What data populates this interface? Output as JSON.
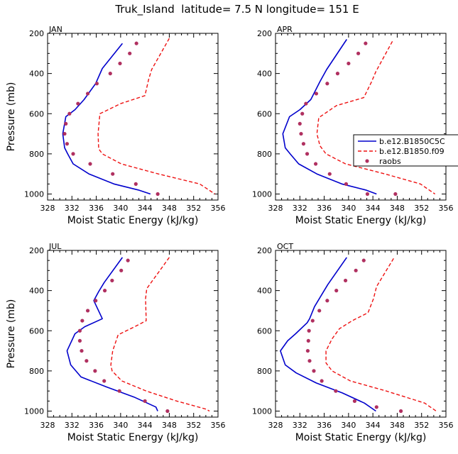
{
  "page": {
    "title": "Truk_Island  latitude= 7.5 N longitude= 151 E"
  },
  "legend": {
    "entries": [
      {
        "name": "b.e12.B1850C5C",
        "color": "#0000cc",
        "style": "solid"
      },
      {
        "name": "b.e12.B1850.f09",
        "color": "#ee1111",
        "style": "dashed"
      },
      {
        "name": "raobs",
        "color": "#b03060",
        "style": "dots"
      }
    ]
  },
  "chart_data": [
    {
      "type": "line",
      "title": "JAN",
      "xlabel": "Moist Static Energy (kJ/kg)",
      "ylabel": "Pressure (mb)",
      "xlim": [
        328,
        356
      ],
      "ylim": [
        200,
        1030
      ],
      "y_inverted": true,
      "xticks": [
        328,
        332,
        336,
        340,
        344,
        348,
        352,
        356
      ],
      "yticks": [
        200,
        400,
        600,
        800,
        1000
      ],
      "series": [
        {
          "name": "b.e12.B1850C5C",
          "color": "#0000cc",
          "style": "solid",
          "x": [
            340.3,
            337.0,
            335.9,
            334.0,
            332.5,
            331.0,
            330.5,
            330.8,
            331.3,
            332.2,
            334.8,
            338.9,
            342.9,
            344.9
          ],
          "y": [
            250,
            375,
            450,
            530,
            580,
            615,
            700,
            770,
            800,
            850,
            900,
            950,
            980,
            1000
          ]
        },
        {
          "name": "b.e12.B1850.f09",
          "color": "#ee1111",
          "style": "dashed",
          "x": [
            348.0,
            345.1,
            344.6,
            344.0,
            340.0,
            336.6,
            336.3,
            336.4,
            337.0,
            340.1,
            346.2,
            353.0,
            355.5
          ],
          "y": [
            225,
            380,
            430,
            510,
            550,
            600,
            700,
            775,
            800,
            850,
            900,
            950,
            1000
          ]
        },
        {
          "name": "raobs",
          "color": "#b03060",
          "style": "dots",
          "x": [
            342.6,
            341.5,
            339.9,
            338.3,
            336.1,
            334.6,
            333.0,
            331.6,
            331.0,
            330.8,
            331.2,
            332.2,
            335.0,
            338.7,
            342.5,
            346.1
          ],
          "y": [
            250,
            300,
            350,
            400,
            450,
            500,
            550,
            600,
            650,
            700,
            750,
            800,
            850,
            900,
            950,
            1000
          ]
        }
      ]
    },
    {
      "type": "line",
      "title": "APR",
      "xlabel": "Moist Static Energy (kJ/kg)",
      "ylabel": "",
      "xlim": [
        328,
        356
      ],
      "ylim": [
        200,
        1030
      ],
      "y_inverted": true,
      "xticks": [
        328,
        332,
        336,
        340,
        344,
        348,
        352,
        356
      ],
      "yticks": [
        200,
        400,
        600,
        800,
        1000
      ],
      "series": [
        {
          "name": "b.e12.B1850C5C",
          "color": "#0000cc",
          "style": "solid",
          "x": [
            339.7,
            336.4,
            335.3,
            333.8,
            332.0,
            330.3,
            329.2,
            329.6,
            330.4,
            331.8,
            334.8,
            338.9,
            342.8,
            344.6
          ],
          "y": [
            230,
            380,
            440,
            530,
            580,
            615,
            700,
            770,
            800,
            850,
            900,
            950,
            980,
            1000
          ]
        },
        {
          "name": "b.e12.B1850.f09",
          "color": "#ee1111",
          "style": "dashed",
          "x": [
            347.2,
            344.5,
            343.8,
            342.5,
            338.0,
            335.1,
            334.8,
            335.3,
            336.3,
            339.5,
            346.0,
            351.8,
            354.2
          ],
          "y": [
            240,
            390,
            440,
            520,
            560,
            620,
            700,
            760,
            800,
            850,
            900,
            950,
            1000
          ]
        },
        {
          "name": "raobs",
          "color": "#b03060",
          "style": "dots",
          "x": [
            342.8,
            341.6,
            340.0,
            338.2,
            336.5,
            334.7,
            333.0,
            332.4,
            332.0,
            332.2,
            332.6,
            333.2,
            334.6,
            336.9,
            339.6,
            343.1,
            347.7
          ],
          "y": [
            250,
            300,
            350,
            400,
            450,
            500,
            550,
            600,
            650,
            700,
            750,
            800,
            850,
            900,
            950,
            1000,
            1000
          ]
        }
      ]
    },
    {
      "type": "line",
      "title": "JUL",
      "xlabel": "Moist Static Energy (kJ/kg)",
      "ylabel": "Pressure (mb)",
      "xlim": [
        328,
        356
      ],
      "ylim": [
        200,
        1030
      ],
      "y_inverted": true,
      "xticks": [
        328,
        332,
        336,
        340,
        344,
        348,
        352,
        356
      ],
      "yticks": [
        200,
        400,
        600,
        800,
        1000
      ],
      "series": [
        {
          "name": "b.e12.B1850C5C",
          "color": "#0000cc",
          "style": "solid",
          "x": [
            340.3,
            337.3,
            336.4,
            335.6,
            337.0,
            334.1,
            332.5,
            331.2,
            331.8,
            333.5,
            337.7,
            342.2,
            345.8,
            346.1
          ],
          "y": [
            235,
            360,
            405,
            450,
            540,
            580,
            615,
            700,
            770,
            830,
            880,
            930,
            980,
            1000
          ]
        },
        {
          "name": "b.e12.B1850.f09",
          "color": "#ee1111",
          "style": "dashed",
          "x": [
            348.0,
            344.3,
            344.1,
            344.2,
            342.3,
            339.6,
            338.7,
            338.4,
            338.6,
            340.2,
            344.2,
            349.2,
            354.0,
            354.6
          ],
          "y": [
            235,
            390,
            440,
            550,
            580,
            620,
            700,
            770,
            800,
            850,
            900,
            950,
            990,
            1000
          ]
        },
        {
          "name": "raobs",
          "color": "#b03060",
          "style": "dots",
          "x": [
            341.2,
            340.1,
            338.6,
            337.4,
            335.9,
            334.6,
            333.7,
            333.3,
            333.3,
            333.6,
            334.4,
            335.8,
            337.3,
            339.8,
            344.0,
            347.7
          ],
          "y": [
            250,
            300,
            350,
            400,
            450,
            500,
            550,
            600,
            650,
            700,
            750,
            800,
            850,
            900,
            950,
            1000
          ]
        }
      ]
    },
    {
      "type": "line",
      "title": "OCT",
      "xlabel": "Moist Static Energy (kJ/kg)",
      "ylabel": "",
      "xlim": [
        328,
        356
      ],
      "ylim": [
        200,
        1030
      ],
      "y_inverted": true,
      "xticks": [
        328,
        332,
        336,
        340,
        344,
        348,
        352,
        356
      ],
      "yticks": [
        200,
        400,
        600,
        800,
        1000
      ],
      "series": [
        {
          "name": "b.e12.B1850C5C",
          "color": "#0000cc",
          "style": "solid",
          "x": [
            339.7,
            336.6,
            335.6,
            334.4,
            333.6,
            333.2,
            331.3,
            330.0,
            328.8,
            329.6,
            331.4,
            334.7,
            339.0,
            342.6,
            344.5
          ],
          "y": [
            235,
            370,
            420,
            480,
            540,
            560,
            615,
            650,
            700,
            770,
            810,
            860,
            910,
            960,
            1000
          ]
        },
        {
          "name": "b.e12.B1850.f09",
          "color": "#ee1111",
          "style": "dashed",
          "x": [
            347.4,
            344.6,
            344.1,
            343.2,
            340.6,
            338.5,
            337.3,
            336.3,
            336.3,
            337.3,
            340.3,
            346.2,
            352.5,
            354.4
          ],
          "y": [
            240,
            380,
            440,
            510,
            550,
            590,
            640,
            700,
            760,
            800,
            850,
            900,
            960,
            1000
          ]
        },
        {
          "name": "raobs",
          "color": "#b03060",
          "style": "dots",
          "x": [
            342.5,
            341.2,
            339.5,
            338.0,
            336.5,
            335.2,
            334.1,
            333.5,
            333.4,
            333.3,
            333.6,
            334.3,
            335.6,
            337.9,
            341.0,
            344.6,
            348.6
          ],
          "y": [
            250,
            300,
            350,
            400,
            450,
            500,
            550,
            600,
            650,
            700,
            750,
            800,
            850,
            900,
            950,
            980,
            1000
          ]
        }
      ]
    }
  ]
}
